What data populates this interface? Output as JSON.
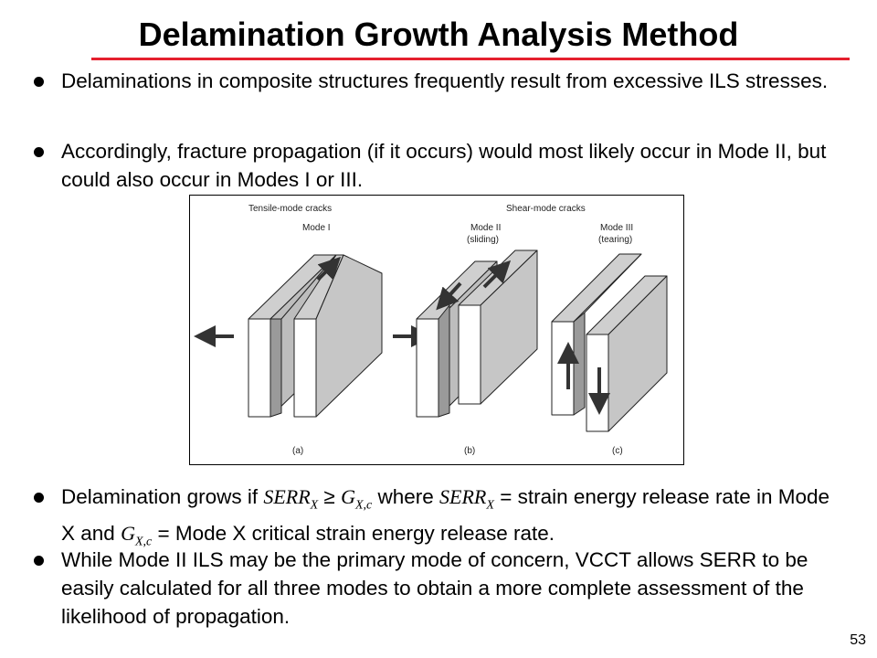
{
  "slide": {
    "title": "Delamination Growth Analysis Method",
    "page_number": "53",
    "accent_color": "#e5202e",
    "bullet_color": "#000000"
  },
  "bullets": [
    {
      "text": "Delaminations in composite structures frequently result from excessive ILS stresses."
    },
    {
      "text": "Accordingly, fracture propagation (if it occurs) would most likely occur in Mode II, but could also occur in Modes I or III."
    },
    {
      "t1": "Delamination grows if ",
      "m1": "SERR",
      "m1_sub": "X",
      "geq": " ≥ ",
      "m2": "G",
      "m2_sub": "X,c",
      "t2": " where ",
      "m3": "SERR",
      "m3_sub": "X",
      "t3": " = strain energy release rate in Mode X and ",
      "m4": "G",
      "m4_sub": "X,c",
      "t4": " = Mode X critical strain energy release rate."
    },
    {
      "text": "While Mode II ILS may be the primary mode of concern, VCCT allows SERR to be easily calculated for all three modes to obtain a more complete assessment of the likelihood of propagation."
    }
  ],
  "figure": {
    "tensile_header": "Tensile-mode cracks",
    "shear_header": "Shear-mode cracks",
    "mode1": "Mode I",
    "mode2": "Mode II",
    "mode2_sub": "(sliding)",
    "mode3": "Mode III",
    "mode3_sub": "(tearing)",
    "caption_a": "(a)",
    "caption_b": "(b)",
    "caption_c": "(c)"
  }
}
